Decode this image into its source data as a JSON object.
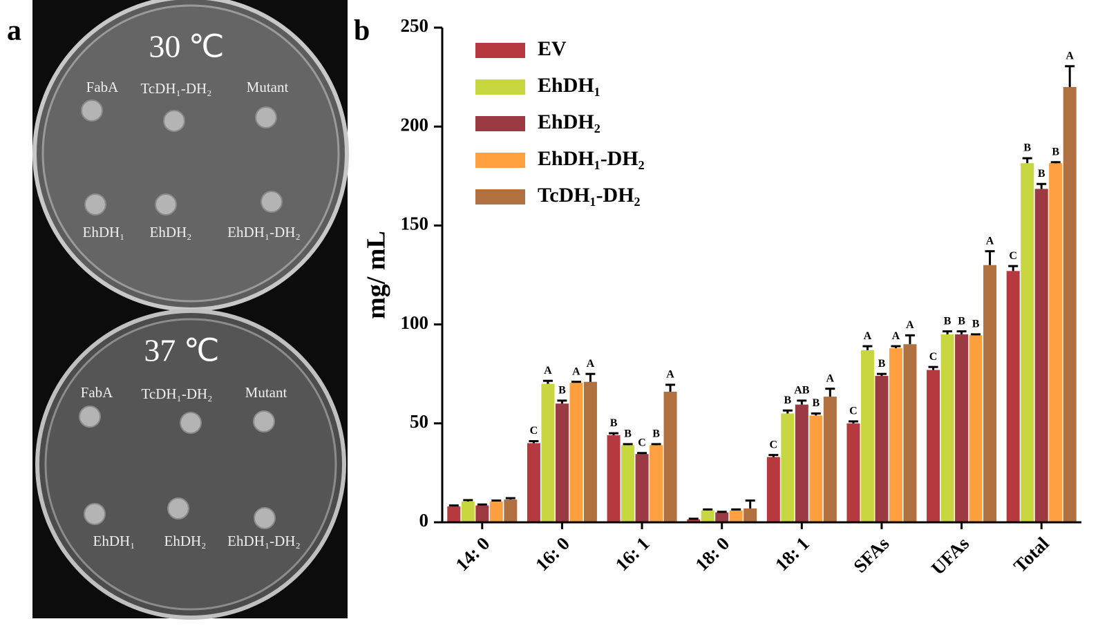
{
  "panel_labels": [
    "a",
    "b"
  ],
  "panel_a": {
    "plates": [
      {
        "temperature": "30 ℃",
        "strains": [
          "FabA",
          "TcDH₁-DH₂",
          "Mutant",
          "EhDH₁",
          "EhDH₂",
          "EhDH₁-DH₂"
        ]
      },
      {
        "temperature": "37 ℃",
        "strains": [
          "FabA",
          "TcDH₁-DH₂",
          "Mutant",
          "EhDH₁",
          "EhDH₂",
          "EhDH₁-DH₂"
        ]
      }
    ]
  },
  "chart_data": {
    "type": "bar",
    "ylabel": "mg/ mL",
    "categories": [
      "14: 0",
      "16: 0",
      "16: 1",
      "18: 0",
      "18: 1",
      "SFAs",
      "UFAs",
      "Total"
    ],
    "ylim": [
      0,
      250
    ],
    "yticks": [
      0,
      50,
      100,
      150,
      200,
      250
    ],
    "legend": "upper left",
    "series": [
      {
        "name": "EV",
        "color": "#b5393f",
        "values": [
          8,
          40,
          44,
          1.5,
          33,
          50,
          77,
          127
        ],
        "errors": [
          0.5,
          1,
          1,
          0.3,
          1,
          1,
          1.5,
          2.5
        ],
        "letters": [
          null,
          "C",
          "B",
          null,
          "C",
          "C",
          "C",
          "C"
        ]
      },
      {
        "name": "EhDH₁",
        "color": "#c8d640",
        "values": [
          10.5,
          70,
          39,
          6,
          55,
          87,
          95,
          181.5
        ],
        "errors": [
          0.7,
          1.5,
          0.5,
          0.5,
          1.5,
          2,
          1.5,
          2.5
        ],
        "letters": [
          null,
          "A",
          "B",
          null,
          "B",
          "A",
          "B",
          "B"
        ]
      },
      {
        "name": "EhDH₂",
        "color": "#9b3a43",
        "values": [
          8.5,
          60,
          34.5,
          5,
          59.5,
          74,
          95,
          168.5
        ],
        "errors": [
          0.5,
          1.5,
          0.5,
          0.3,
          2,
          1,
          1.5,
          2.5
        ],
        "letters": [
          null,
          "B",
          "C",
          null,
          "AB",
          "B",
          "B",
          "B"
        ]
      },
      {
        "name": "EhDH₁-DH₂",
        "color": "#ffa040",
        "values": [
          10.5,
          70.5,
          39,
          6,
          54,
          88,
          94.5,
          181.5
        ],
        "errors": [
          0.5,
          0.5,
          0.5,
          0.5,
          1,
          1,
          0.5,
          0.5
        ],
        "letters": [
          null,
          "A",
          "B",
          null,
          "B",
          "A",
          "B",
          "B"
        ]
      },
      {
        "name": "TcDH₁-DH₂",
        "color": "#b07040",
        "values": [
          11.5,
          71,
          66,
          7,
          63.5,
          90,
          130,
          220
        ],
        "errors": [
          0.7,
          4,
          3.5,
          4,
          4,
          4.5,
          7,
          10.5
        ],
        "letters": [
          null,
          "A",
          "A",
          null,
          "A",
          "A",
          "A",
          "A"
        ]
      }
    ]
  }
}
